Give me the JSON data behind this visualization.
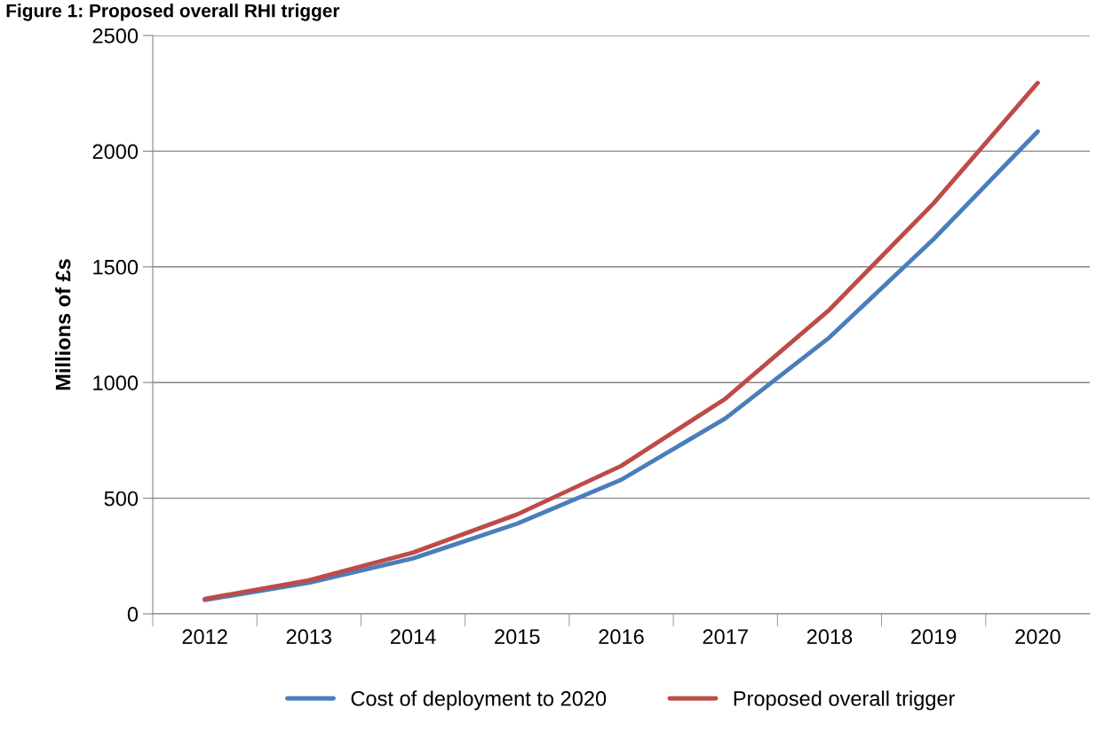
{
  "chart_data": {
    "type": "line",
    "title": "Figure 1: Proposed overall RHI trigger",
    "ylabel": "Millions of £s",
    "categories": [
      "2012",
      "2013",
      "2014",
      "2015",
      "2016",
      "2017",
      "2018",
      "2019",
      "2020"
    ],
    "series": [
      {
        "name": "Cost of deployment to 2020",
        "color": "#4a7ebb",
        "values": [
          60,
          135,
          240,
          390,
          580,
          845,
          1195,
          1620,
          2085
        ]
      },
      {
        "name": "Proposed overall trigger",
        "color": "#be4b48",
        "values": [
          65,
          145,
          265,
          430,
          640,
          930,
          1315,
          1775,
          2295
        ]
      }
    ],
    "ylim": [
      0,
      2500
    ],
    "yticks": [
      0,
      500,
      1000,
      1500,
      2000,
      2500
    ],
    "grid": "y",
    "legend": "bottom",
    "marker": "none",
    "line_style": "solid"
  }
}
